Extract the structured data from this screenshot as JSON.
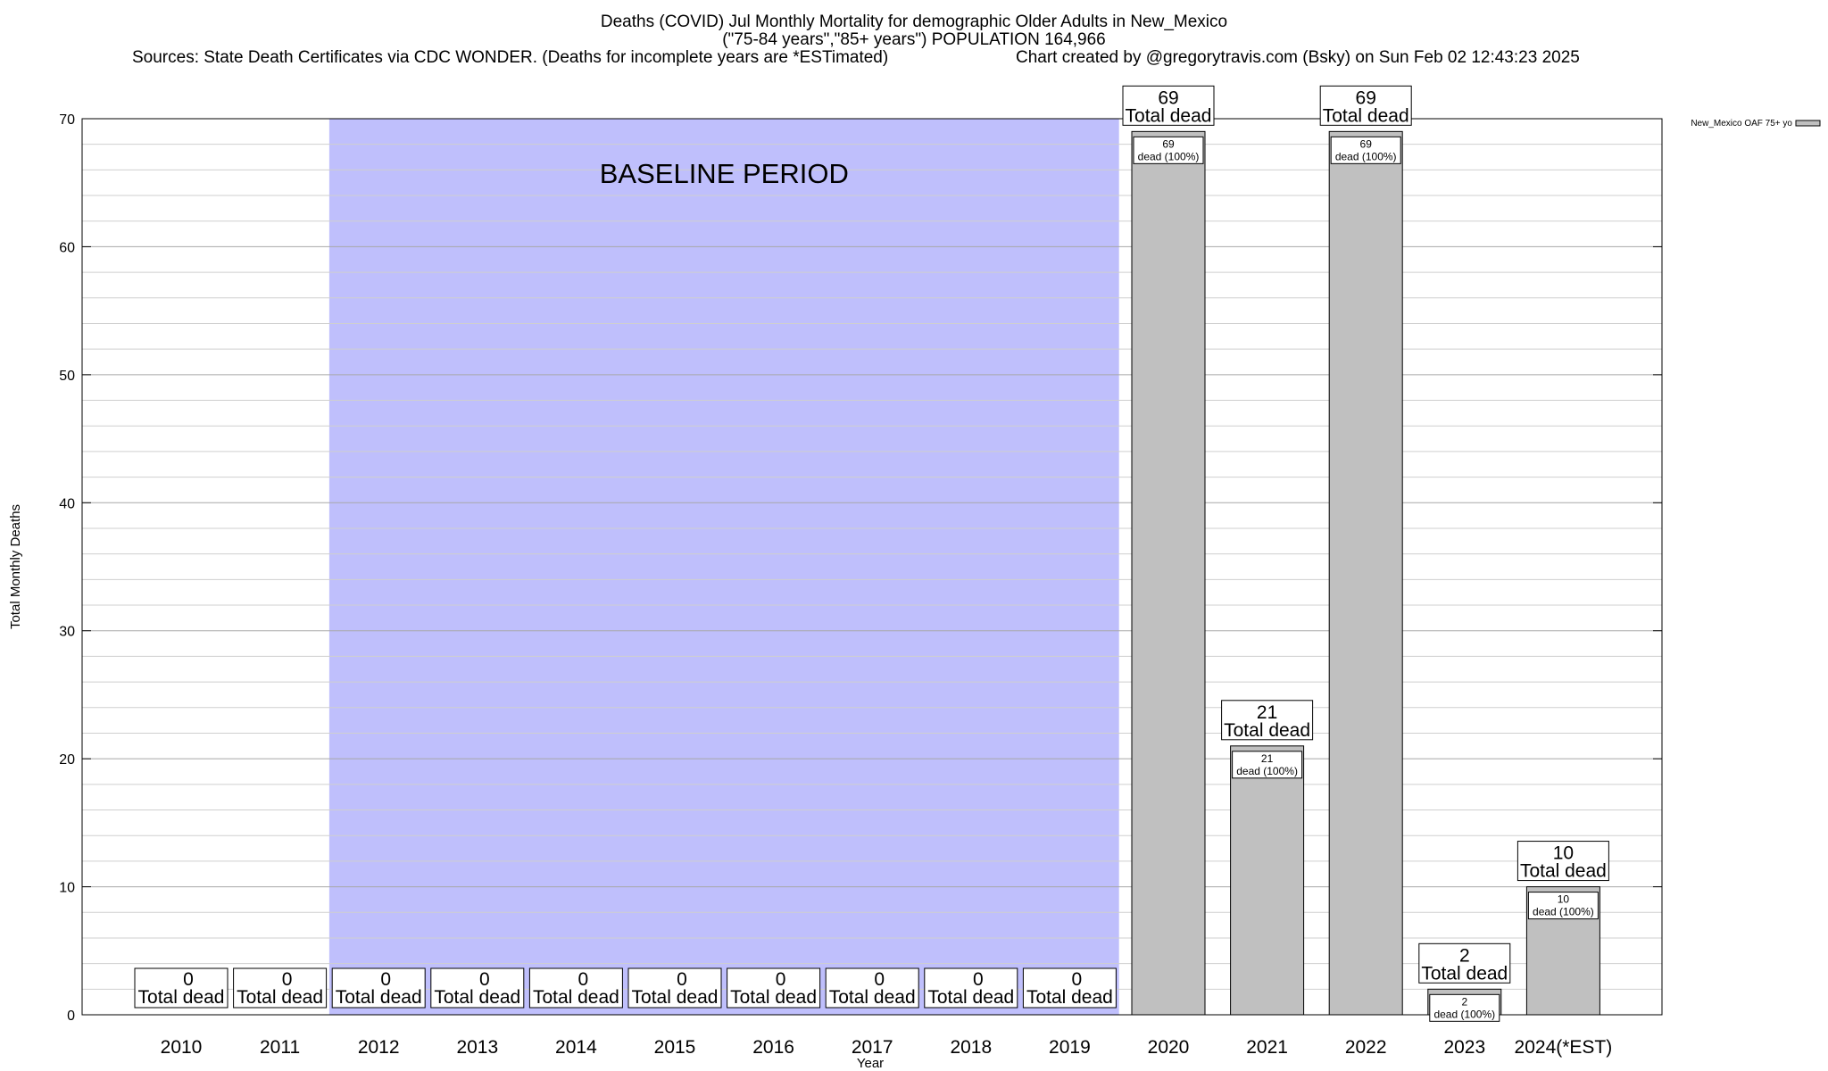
{
  "header": {
    "title_line1": "Deaths (COVID) Jul Monthly Mortality for demographic Older Adults in New_Mexico",
    "title_line2": "(\"75-84 years\",\"85+ years\") POPULATION 164,966",
    "sources": "Sources: State Death Certificates via CDC WONDER. (Deaths for incomplete years are *ESTimated)",
    "credit": "Chart created by @gregorytravis.com (Bsky) on Sun Feb 02 12:43:23 2025"
  },
  "chart_data": {
    "type": "bar",
    "title": "Deaths (COVID) Jul Monthly Mortality for demographic Older Adults in New_Mexico",
    "subtitle": "(\"75-84 years\",\"85+ years\") POPULATION 164,966",
    "xlabel": "Year",
    "ylabel": "Total Monthly Deaths",
    "ylim": [
      0,
      70
    ],
    "yticks": [
      0,
      10,
      20,
      30,
      40,
      50,
      60,
      70
    ],
    "grid": true,
    "legend_position": "top-right",
    "categories": [
      "2010",
      "2011",
      "2012",
      "2013",
      "2014",
      "2015",
      "2016",
      "2017",
      "2018",
      "2019",
      "2020",
      "2021",
      "2022",
      "2023",
      "2024(*EST)"
    ],
    "series": [
      {
        "name": "New_Mexico OAF 75+ yo",
        "color": "#c0c0c0",
        "values": [
          0,
          0,
          0,
          0,
          0,
          0,
          0,
          0,
          0,
          0,
          69,
          21,
          69,
          2,
          10
        ]
      }
    ],
    "total_label_suffix": "Total dead",
    "segment_label_suffix": "dead (100%)",
    "baseline": {
      "label": "BASELINE PERIOD",
      "from": "2012",
      "to": "2019",
      "color": "#bfbffc"
    }
  }
}
